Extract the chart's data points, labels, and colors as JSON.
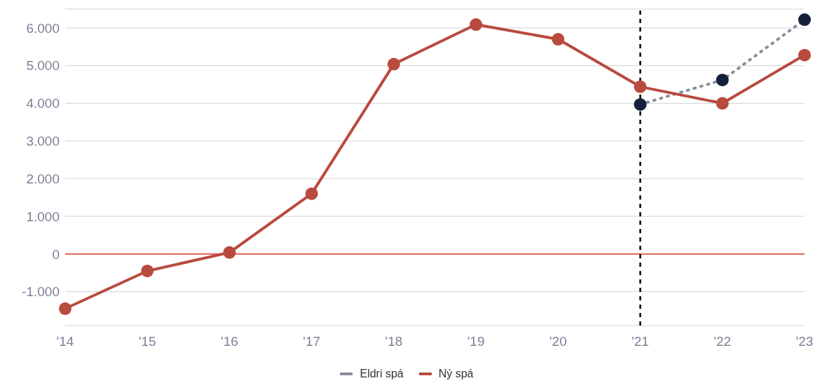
{
  "chart_data": {
    "type": "line",
    "categories": [
      "'14",
      "'15",
      "'16",
      "'17",
      "'18",
      "'19",
      "'20",
      "'21",
      "'22",
      "'23"
    ],
    "series": [
      {
        "name": "Eldri spá",
        "color": "#8a8f9c",
        "line_style": "dotted",
        "values": [
          null,
          null,
          null,
          null,
          null,
          null,
          null,
          3970,
          4620,
          6220
        ]
      },
      {
        "name": "Ný spá",
        "color": "#b94a3e",
        "line_style": "solid",
        "values": [
          -1450,
          -450,
          40,
          1600,
          5040,
          6090,
          5700,
          4440,
          4000,
          5280
        ]
      }
    ],
    "ylim": [
      -1900,
      6500
    ],
    "yticks": [
      {
        "value": -1000,
        "label": "-1.000"
      },
      {
        "value": 0,
        "label": "0"
      },
      {
        "value": 1000,
        "label": "1.000"
      },
      {
        "value": 2000,
        "label": "2.000"
      },
      {
        "value": 3000,
        "label": "3.000"
      },
      {
        "value": 4000,
        "label": "4.000"
      },
      {
        "value": 5000,
        "label": "5.000"
      },
      {
        "value": 6000,
        "label": "6.000"
      }
    ],
    "ref_lines": [
      {
        "axis": "y",
        "value": 0,
        "color": "#e0605a",
        "line_style": "solid"
      },
      {
        "axis": "x",
        "value": "'21",
        "color": "#000000",
        "line_style": "dashed"
      }
    ],
    "grid": "y",
    "legend": "bottom",
    "marker": "circle"
  }
}
